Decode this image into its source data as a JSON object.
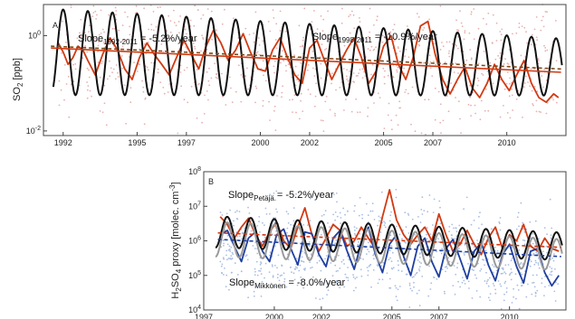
{
  "colors": {
    "observed_red": "#d23a12",
    "model_black": "#111111",
    "mikkonen_blue": "#1f3fa0",
    "trend_dark": "#7a4a1a",
    "scatter_red": "#e8b0b0",
    "scatter_blue": "#a9bde3",
    "scatter_grey": "#9a9a9a",
    "axis": "#444444"
  },
  "chart_data": [
    {
      "panel": "A",
      "type": "line",
      "ylabel": "SO2 [ppb]",
      "yscale": "log",
      "xlim": [
        1991.2,
        2012.4
      ],
      "ylim": [
        0.008,
        4.5
      ],
      "x_ticks": [
        "1992",
        "1995",
        "1997",
        "2000",
        "2002",
        "2005",
        "2007",
        "2010"
      ],
      "x_tick_values": [
        1992,
        1995,
        1997,
        2000,
        2002,
        2005,
        2007,
        2010
      ],
      "y_ticks": [
        {
          "value": 0.01,
          "base": "10",
          "exp": "-2"
        },
        {
          "value": 1,
          "base": "10",
          "exp": "0"
        }
      ],
      "annotations": [
        {
          "main": "Slope",
          "sub": "1992-2011",
          "tail": " = -5.2%/year"
        },
        {
          "main": "Slope",
          "sub": "1998-2011",
          "tail": " = -10.9%/year"
        }
      ],
      "series": [
        {
          "role": "observed_daily_scatter",
          "color": "#e8b0b0",
          "center_start": 0.55,
          "center_end": 0.2
        },
        {
          "role": "observed_smoothed",
          "color": "#d23a12",
          "x": [
            1991.8,
            1992.0,
            1992.2,
            1992.4,
            1992.6,
            1992.8,
            1993.0,
            1993.3,
            1993.6,
            1993.9,
            1994.2,
            1994.5,
            1994.8,
            1995.1,
            1995.4,
            1995.7,
            1996.0,
            1996.3,
            1996.6,
            1996.9,
            1997.2,
            1997.5,
            1997.8,
            1998.1,
            1998.4,
            1998.7,
            1999.0,
            1999.3,
            1999.6,
            1999.9,
            2000.2,
            2000.5,
            2000.8,
            2001.1,
            2001.4,
            2001.7,
            2002.0,
            2002.3,
            2002.6,
            2002.9,
            2003.2,
            2003.5,
            2003.8,
            2004.1,
            2004.4,
            2004.7,
            2005.0,
            2005.3,
            2005.6,
            2005.9,
            2006.2,
            2006.5,
            2006.8,
            2007.1,
            2007.4,
            2007.7,
            2008.0,
            2008.3,
            2008.6,
            2008.9,
            2009.2,
            2009.5,
            2009.8,
            2010.1,
            2010.4,
            2010.7,
            2011.0,
            2011.3,
            2011.6,
            2011.9,
            2012.1
          ],
          "y": [
            0.7,
            0.45,
            0.25,
            0.35,
            0.6,
            0.5,
            0.3,
            0.15,
            0.4,
            0.9,
            0.5,
            0.2,
            0.12,
            0.35,
            0.7,
            0.4,
            0.25,
            0.15,
            0.35,
            0.8,
            0.4,
            0.2,
            0.6,
            1.3,
            0.7,
            0.3,
            0.5,
            1.1,
            0.45,
            0.2,
            0.18,
            0.5,
            0.9,
            0.35,
            0.15,
            0.1,
            0.55,
            0.8,
            0.3,
            0.12,
            0.25,
            0.5,
            0.9,
            0.35,
            0.1,
            0.18,
            0.6,
            1.0,
            0.25,
            0.12,
            0.35,
            1.6,
            2.0,
            0.4,
            0.12,
            0.06,
            0.12,
            0.22,
            0.08,
            0.05,
            0.1,
            0.25,
            0.12,
            0.07,
            0.15,
            0.3,
            0.1,
            0.05,
            0.04,
            0.06,
            0.05
          ]
        },
        {
          "role": "model_seasonal",
          "color": "#111111",
          "amp_start": 0.9,
          "amp_end": 0.6,
          "center_start": 0.45,
          "center_end": 0.22
        },
        {
          "role": "trend_1992_2011",
          "color": "#d23a12",
          "style": "solid",
          "x": [
            1991.5,
            2012.2
          ],
          "y": [
            0.55,
            0.17
          ]
        },
        {
          "role": "trend_1998_2011",
          "color": "#7a4a1a",
          "style": "dashed",
          "x": [
            1991.5,
            2012.2
          ],
          "y": [
            0.6,
            0.2
          ]
        }
      ]
    },
    {
      "panel": "B",
      "type": "line",
      "ylabel": "H2SO4 proxy [molec. cm-3]",
      "yscale": "log",
      "xlim": [
        1997.0,
        2012.4
      ],
      "ylim": [
        10000,
        100000000
      ],
      "x_ticks": [
        "1997",
        "2000",
        "2002",
        "2005",
        "2007",
        "2010"
      ],
      "x_tick_values": [
        1997,
        2000,
        2002,
        2005,
        2007,
        2010
      ],
      "y_ticks": [
        {
          "value": 10000,
          "base": "10",
          "exp": "4"
        },
        {
          "value": 100000,
          "base": "10",
          "exp": "5"
        },
        {
          "value": 1000000,
          "base": "10",
          "exp": "6"
        },
        {
          "value": 10000000,
          "base": "10",
          "exp": "7"
        },
        {
          "value": 100000000,
          "base": "10",
          "exp": "8"
        }
      ],
      "annotations": [
        {
          "main": "Slope",
          "sub": "Petäjä",
          "tail": " = -5.2%/year"
        },
        {
          "main": "Slope",
          "sub": "Mikkonen",
          "tail": " = -8.0%/year"
        }
      ],
      "series": [
        {
          "role": "proxy_mikkonen_scatter",
          "color": "#a9bde3",
          "center_start": 900000,
          "center_end": 300000
        },
        {
          "role": "proxy_petaja_smoothed",
          "color": "#d23a12",
          "x": [
            1997.7,
            1998.0,
            1998.3,
            1998.6,
            1998.9,
            1999.2,
            1999.5,
            1999.8,
            2000.1,
            2000.4,
            2000.7,
            2001.0,
            2001.3,
            2001.6,
            2001.9,
            2002.2,
            2002.5,
            2002.8,
            2003.1,
            2003.4,
            2003.7,
            2004.0,
            2004.3,
            2004.6,
            2004.9,
            2005.2,
            2005.5,
            2005.8,
            2006.1,
            2006.4,
            2006.7,
            2007.0,
            2007.3,
            2007.6,
            2007.9,
            2008.2,
            2008.5,
            2008.8,
            2009.1,
            2009.4,
            2009.7,
            2010.0,
            2010.3,
            2010.6,
            2010.9,
            2011.2,
            2011.5,
            2011.8,
            2012.1
          ],
          "y": [
            5000000,
            3000000,
            1200000,
            2500000,
            4500000,
            1500000,
            700000,
            1800000,
            3500000,
            1000000,
            600000,
            2500000,
            9000000,
            1500000,
            500000,
            1200000,
            3000000,
            2000000,
            700000,
            1000000,
            2500000,
            1200000,
            600000,
            5000000,
            30000000,
            4000000,
            1500000,
            800000,
            1500000,
            2500000,
            1000000,
            6000000,
            1500000,
            500000,
            800000,
            2000000,
            800000,
            400000,
            1200000,
            2500000,
            600000,
            1500000,
            1000000,
            3000000,
            700000,
            500000,
            1200000,
            600000,
            500000
          ]
        },
        {
          "role": "proxy_mikkonen_smoothed",
          "color": "#1f3fa0",
          "x": [
            1997.7,
            1998.0,
            1998.3,
            1998.6,
            1998.9,
            1999.2,
            1999.5,
            1999.8,
            2000.1,
            2000.4,
            2000.7,
            2001.0,
            2001.3,
            2001.6,
            2001.9,
            2002.2,
            2002.5,
            2002.8,
            2003.1,
            2003.4,
            2003.7,
            2004.0,
            2004.3,
            2004.6,
            2004.9,
            2005.2,
            2005.5,
            2005.8,
            2006.1,
            2006.4,
            2006.7,
            2007.0,
            2007.3,
            2007.6,
            2007.9,
            2008.2,
            2008.5,
            2008.8,
            2009.1,
            2009.4,
            2009.7,
            2010.0,
            2010.3,
            2010.6,
            2010.9,
            2011.2,
            2011.5,
            2011.8,
            2012.1
          ],
          "y": [
            1500000,
            2000000,
            700000,
            250000,
            1200000,
            1800000,
            500000,
            250000,
            1500000,
            2200000,
            600000,
            200000,
            1800000,
            1600000,
            400000,
            180000,
            1200000,
            2000000,
            500000,
            150000,
            900000,
            2500000,
            400000,
            120000,
            800000,
            1500000,
            350000,
            100000,
            700000,
            1200000,
            250000,
            90000,
            600000,
            1100000,
            300000,
            80000,
            500000,
            900000,
            200000,
            70000,
            400000,
            800000,
            180000,
            60000,
            500000,
            600000,
            120000,
            50000,
            100000
          ]
        },
        {
          "role": "model_black",
          "color": "#111111",
          "amp_start": 0.45,
          "amp_end": 0.4,
          "center_start": 1800000,
          "center_end": 700000
        },
        {
          "role": "model_grey",
          "color": "#9a9a9a",
          "amp_start": 0.5,
          "amp_end": 0.45,
          "center_start": 1100000,
          "center_end": 400000
        },
        {
          "role": "trend_petaja",
          "color": "#d23a12",
          "style": "dashed",
          "x": [
            1997.6,
            2012.2
          ],
          "y": [
            1700000,
            650000
          ]
        },
        {
          "role": "trend_mikkonen",
          "color": "#1f3fa0",
          "style": "dashed",
          "x": [
            1997.6,
            2012.2
          ],
          "y": [
            1100000,
            350000
          ]
        }
      ]
    }
  ]
}
